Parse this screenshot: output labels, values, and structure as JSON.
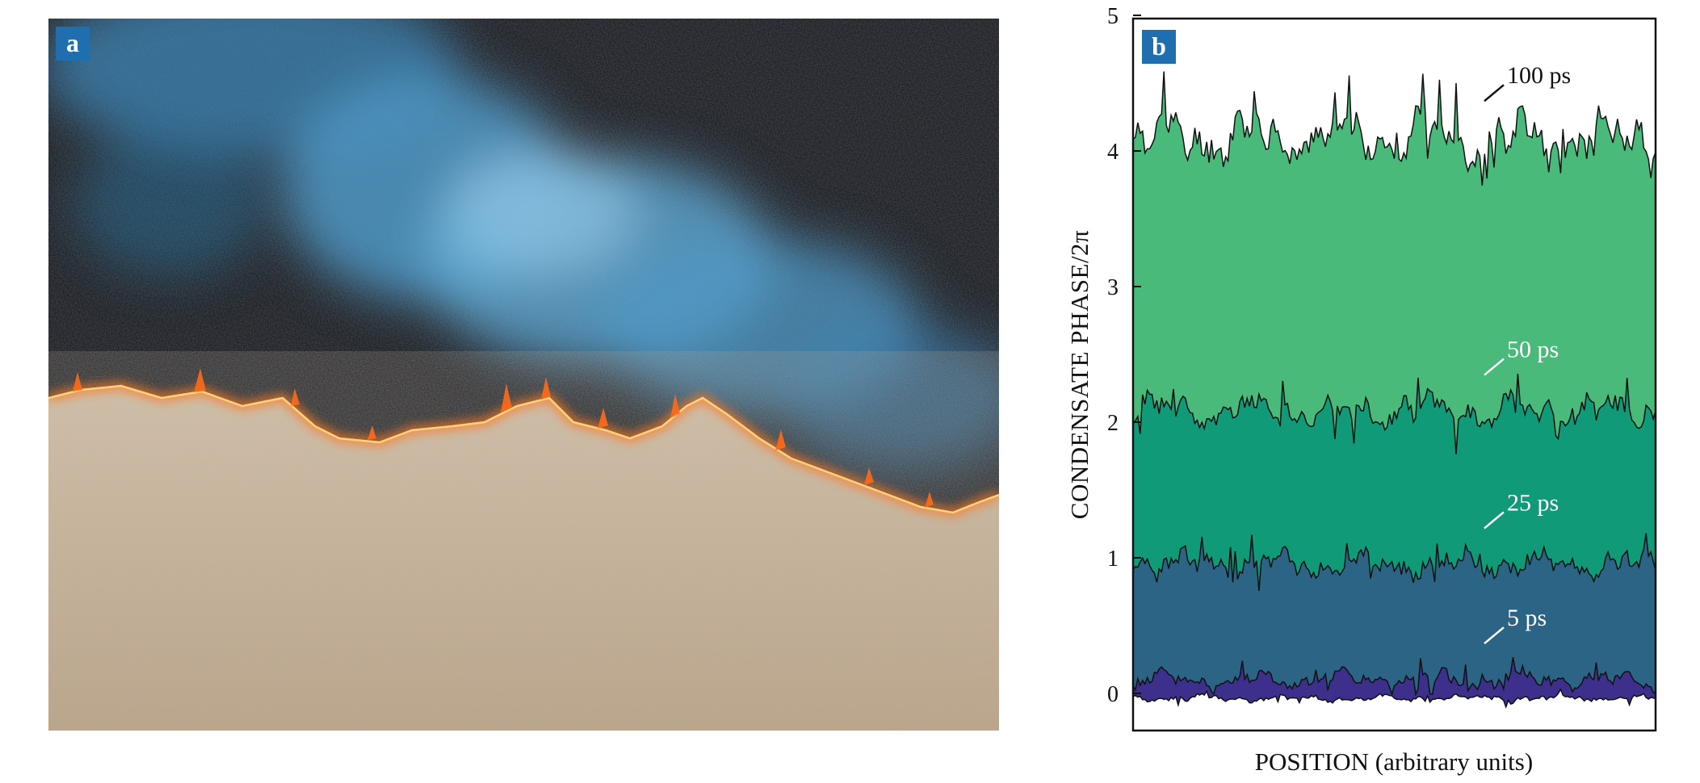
{
  "panel_a": {
    "label": "a",
    "subject": "aerial photo of a grass fire front with smoke",
    "colors": {
      "burned": "#0f1a24",
      "smoke": "#5aa0cc",
      "grass": "#c9b49b",
      "flame": "#ff6a1a",
      "tag": "#1f6fb0"
    }
  },
  "chart_data": {
    "type": "area",
    "panel_label": "b",
    "title": "",
    "xlabel": "POSITION (arbitrary units)",
    "ylabel": "CONDENSATE PHASE/2π",
    "ylim": [
      0,
      5
    ],
    "x_range": [
      0,
      1
    ],
    "yticks": [
      0,
      1,
      2,
      3,
      4,
      5
    ],
    "grid": false,
    "series": [
      {
        "name": "100 ps",
        "label": "100 ps",
        "mean": 4.1,
        "amplitude": 0.22,
        "seed": 11,
        "color": "#4aba7a",
        "label_color": "#111111"
      },
      {
        "name": "50 ps",
        "label": "50 ps",
        "mean": 2.08,
        "amplitude": 0.15,
        "seed": 23,
        "color": "#119a78",
        "label_color": "#ffffff"
      },
      {
        "name": "25 ps",
        "label": "25 ps",
        "mean": 0.95,
        "amplitude": 0.12,
        "seed": 37,
        "color": "#2b6485",
        "label_color": "#ffffff"
      },
      {
        "name": "5 ps",
        "label": "5 ps",
        "mean": 0.1,
        "amplitude": 0.08,
        "seed": 5,
        "color": "#3d2f8c",
        "label_color": "#ffffff"
      }
    ]
  }
}
